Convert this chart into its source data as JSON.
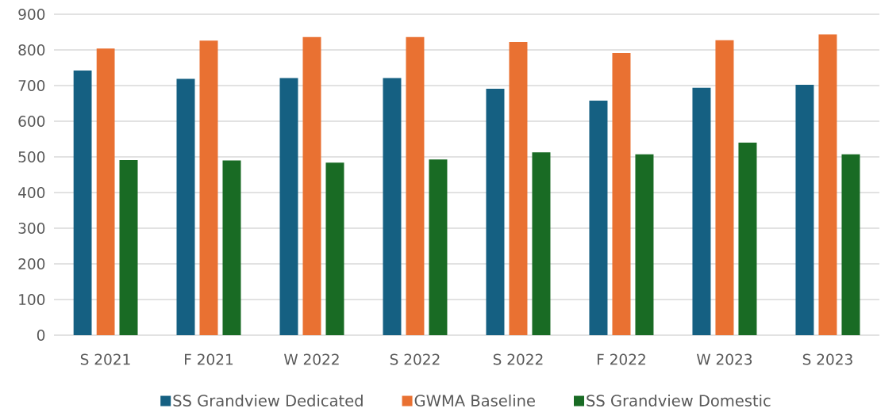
{
  "chart_data": {
    "type": "bar",
    "categories": [
      "S 2021",
      "F 2021",
      "W 2022",
      "S 2022",
      "S 2022",
      "F 2022",
      "W 2023",
      "S 2023"
    ],
    "series": [
      {
        "name": "SS Grandview Dedicated",
        "color": "#156082",
        "values": [
          742,
          719,
          721,
          721,
          691,
          658,
          694,
          702
        ]
      },
      {
        "name": "GWMA Baseline",
        "color": "#e97132",
        "values": [
          804,
          826,
          836,
          836,
          822,
          791,
          827,
          844
        ]
      },
      {
        "name": "SS Grandview Domestic",
        "color": "#196b24",
        "values": [
          491,
          490,
          484,
          493,
          513,
          507,
          540,
          507
        ]
      }
    ],
    "ylim": [
      0,
      900
    ],
    "yticks": [
      0,
      100,
      200,
      300,
      400,
      500,
      600,
      700,
      800,
      900
    ],
    "grid": "y",
    "legend": "bottom"
  }
}
